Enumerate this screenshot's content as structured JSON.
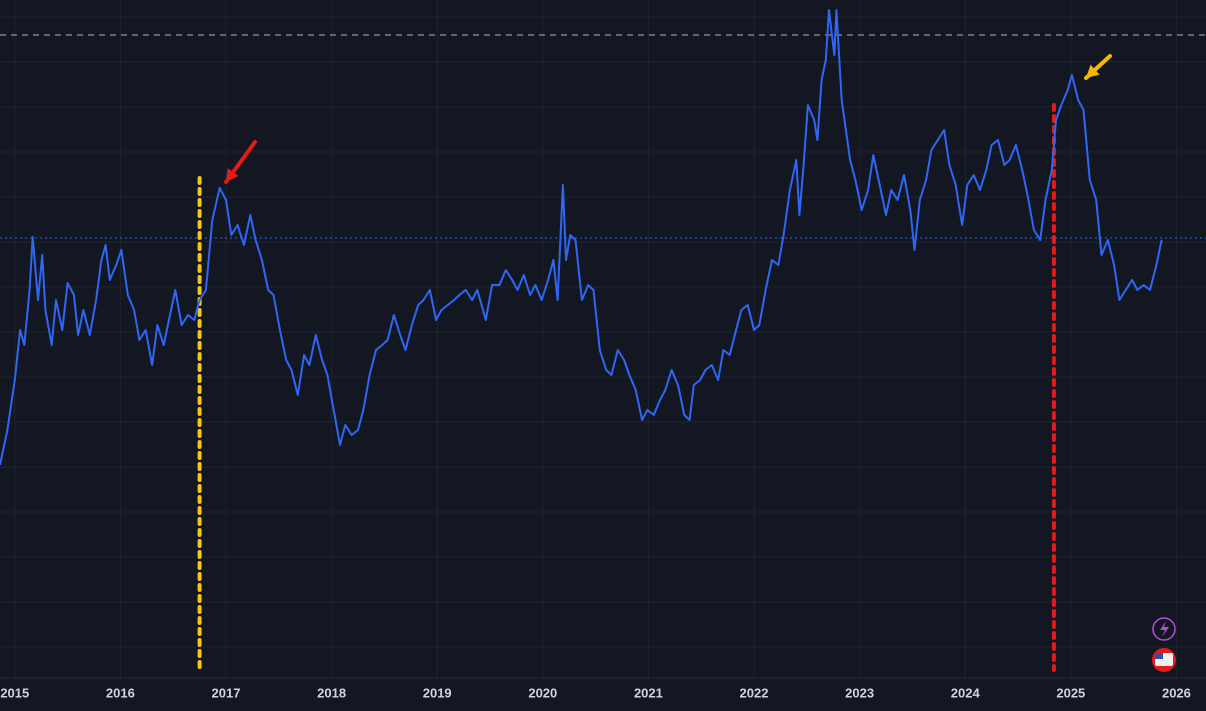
{
  "chart_data": {
    "type": "line",
    "x": [
      2014.86,
      2014.93,
      2015.0,
      2015.05,
      2015.09,
      2015.14,
      2015.17,
      2015.22,
      2015.26,
      2015.29,
      2015.35,
      2015.39,
      2015.45,
      2015.5,
      2015.56,
      2015.6,
      2015.65,
      2015.71,
      2015.77,
      2015.82,
      2015.86,
      2015.9,
      2015.96,
      2016.01,
      2016.07,
      2016.13,
      2016.18,
      2016.24,
      2016.3,
      2016.35,
      2016.41,
      2016.47,
      2016.52,
      2016.58,
      2016.64,
      2016.7,
      2016.75,
      2016.81,
      2016.87,
      2016.94,
      2017.0,
      2017.05,
      2017.11,
      2017.17,
      2017.23,
      2017.28,
      2017.34,
      2017.4,
      2017.45,
      2017.51,
      2017.57,
      2017.62,
      2017.68,
      2017.74,
      2017.79,
      2017.85,
      2017.91,
      2017.96,
      2018.02,
      2018.08,
      2018.13,
      2018.19,
      2018.25,
      2018.3,
      2018.36,
      2018.42,
      2018.48,
      2018.53,
      2018.59,
      2018.65,
      2018.7,
      2018.76,
      2018.82,
      2018.87,
      2018.93,
      2018.99,
      2019.04,
      2019.1,
      2019.16,
      2019.21,
      2019.27,
      2019.33,
      2019.38,
      2019.46,
      2019.52,
      2019.59,
      2019.65,
      2019.71,
      2019.76,
      2019.82,
      2019.88,
      2019.93,
      2019.99,
      2020.05,
      2020.1,
      2020.14,
      2020.19,
      2020.22,
      2020.26,
      2020.31,
      2020.37,
      2020.43,
      2020.48,
      2020.54,
      2020.6,
      2020.65,
      2020.71,
      2020.77,
      2020.82,
      2020.88,
      2020.94,
      2020.99,
      2021.05,
      2021.11,
      2021.16,
      2021.22,
      2021.28,
      2021.34,
      2021.39,
      2021.43,
      2021.49,
      2021.54,
      2021.6,
      2021.66,
      2021.71,
      2021.77,
      2021.83,
      2021.88,
      2021.94,
      2022.0,
      2022.05,
      2022.11,
      2022.17,
      2022.23,
      2022.28,
      2022.34,
      2022.4,
      2022.43,
      2022.47,
      2022.51,
      2022.57,
      2022.6,
      2022.64,
      2022.68,
      2022.71,
      2022.76,
      2022.78,
      2022.83,
      2022.87,
      2022.91,
      2022.96,
      2023.02,
      2023.08,
      2023.13,
      2023.19,
      2023.25,
      2023.3,
      2023.36,
      2023.42,
      2023.48,
      2023.52,
      2023.57,
      2023.63,
      2023.68,
      2023.74,
      2023.8,
      2023.85,
      2023.91,
      2023.97,
      2024.02,
      2024.08,
      2024.14,
      2024.2,
      2024.25,
      2024.31,
      2024.37,
      2024.42,
      2024.48,
      2024.54,
      2024.59,
      2024.65,
      2024.71,
      2024.76,
      2024.82,
      2024.86,
      2024.91,
      2024.97,
      2025.01,
      2025.07,
      2025.12,
      2025.18,
      2025.24,
      2025.29,
      2025.35,
      2025.41,
      2025.46,
      2025.52,
      2025.58,
      2025.63,
      2025.69,
      2025.75,
      2025.81,
      2025.86
    ],
    "series": [
      {
        "color": "#2f66f5",
        "values": [
          213,
          248,
          298,
          348,
          333,
          388,
          441,
          378,
          423,
          368,
          333,
          378,
          348,
          395,
          383,
          343,
          368,
          343,
          378,
          418,
          433,
          398,
          413,
          428,
          383,
          368,
          338,
          348,
          313,
          353,
          333,
          363,
          388,
          353,
          363,
          358,
          378,
          388,
          458,
          490,
          478,
          443,
          453,
          433,
          463,
          438,
          418,
          388,
          383,
          348,
          318,
          308,
          283,
          323,
          313,
          343,
          318,
          303,
          268,
          233,
          253,
          243,
          248,
          268,
          303,
          328,
          333,
          338,
          363,
          343,
          328,
          353,
          373,
          378,
          388,
          358,
          368,
          373,
          378,
          383,
          388,
          378,
          388,
          358,
          393,
          393,
          408,
          398,
          388,
          403,
          383,
          393,
          378,
          398,
          418,
          378,
          493,
          418,
          443,
          438,
          378,
          393,
          388,
          328,
          308,
          303,
          328,
          318,
          303,
          288,
          258,
          268,
          263,
          278,
          288,
          308,
          293,
          263,
          258,
          293,
          298,
          308,
          313,
          298,
          328,
          323,
          348,
          368,
          373,
          348,
          353,
          388,
          418,
          413,
          443,
          488,
          518,
          463,
          513,
          573,
          558,
          538,
          598,
          618,
          668,
          623,
          668,
          578,
          548,
          518,
          498,
          468,
          488,
          523,
          493,
          463,
          488,
          478,
          503,
          468,
          428,
          478,
          498,
          528,
          538,
          548,
          513,
          493,
          453,
          493,
          503,
          488,
          508,
          533,
          538,
          513,
          518,
          533,
          508,
          483,
          448,
          438,
          478,
          508,
          558,
          573,
          588,
          603,
          578,
          568,
          498,
          478,
          423,
          438,
          413,
          378,
          388,
          398,
          388,
          393,
          388,
          413,
          438
        ]
      }
    ],
    "xlim": [
      2014.86,
      2026.28
    ],
    "ylim": [
      0,
      678
    ],
    "xticks": [
      2015,
      2016,
      2017,
      2018,
      2019,
      2020,
      2021,
      2022,
      2023,
      2024,
      2025,
      2026
    ],
    "grid": true,
    "hlines": [
      {
        "value": 643,
        "color": "#b2b5be",
        "dash": "dashed"
      },
      {
        "value": 440,
        "color": "#2962ff",
        "dash": "dotted"
      }
    ],
    "vlines": [
      {
        "x": 2016.75,
        "top": 500,
        "color": "#f5c518"
      },
      {
        "x": 2024.84,
        "top": 573,
        "color": "#e31b1b"
      }
    ]
  }
}
